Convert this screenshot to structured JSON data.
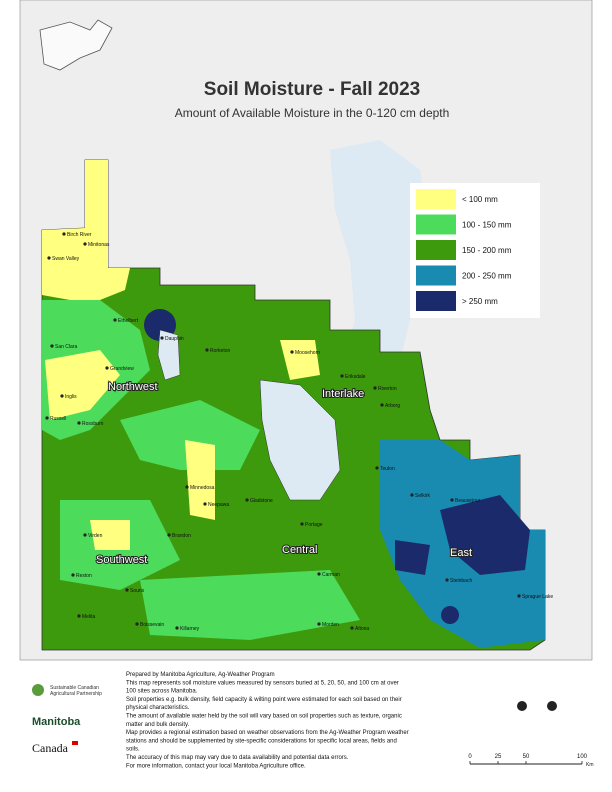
{
  "header": {
    "title": "Soil Moisture - Fall 2023",
    "subtitle": "Amount of Available Moisture in the 0-120 cm depth"
  },
  "legend": [
    {
      "label": "< 100 mm",
      "color": "#ffff80"
    },
    {
      "label": "100 - 150 mm",
      "color": "#4ddb5c"
    },
    {
      "label": "150 - 200 mm",
      "color": "#3c9a0c"
    },
    {
      "label": "200 - 250 mm",
      "color": "#1a8bb0"
    },
    {
      "label": "> 250 mm",
      "color": "#1b2a6b"
    }
  ],
  "regions": [
    "Northwest",
    "Interlake",
    "Southwest",
    "Central",
    "East"
  ],
  "towns": [
    "Birch River",
    "Minitonas",
    "Swan Valley",
    "Ethelbert",
    "San Clara",
    "Dauphin",
    "Grandview",
    "Inglis",
    "Russell",
    "Rossburn",
    "Rorketon",
    "Moosehorn",
    "Eriksdale",
    "Arborg",
    "Riverton",
    "Teulon",
    "Selkirk",
    "Beausejour",
    "Steinbach",
    "Sprague Lake",
    "Altona",
    "Morden",
    "Carman",
    "Portage",
    "Brandon",
    "Minnedosa",
    "Neepawa",
    "Killarney",
    "Boissevain",
    "Melita",
    "Virden",
    "Reston",
    "Souris",
    "Gladstone"
  ],
  "notes": [
    "Prepared by Manitoba Agriculture, Ag-Weather Program",
    "This map represents soil moisture values measured by sensors buried at 5, 20, 50, and 100 cm at over",
    "100 sites across Manitoba.",
    "Soil properties e.g. bulk density, field capacity & wilting point were estimated for each soil based on their",
    "physical characteristics.",
    "The amount of available water held by the soil will vary based on soil properties such as texture, organic",
    "matter and bulk density.",
    "Map provides a regional estimation based on weather observations from the Ag-Weather Program weather",
    "stations and should be supplemented by site-specific considerations for specific local areas, fields and",
    "soils.",
    "The accuracy of this map may vary due to data availability and potential data errors.",
    "For more information, contact your local Manitoba Agriculture office."
  ],
  "logos": [
    "Sustainable Canadian",
    "Agricultural Partnership",
    "Manitoba",
    "Canada"
  ],
  "scale_bar": {
    "ticks": [
      0,
      25,
      50,
      100
    ],
    "unit": "Km"
  }
}
